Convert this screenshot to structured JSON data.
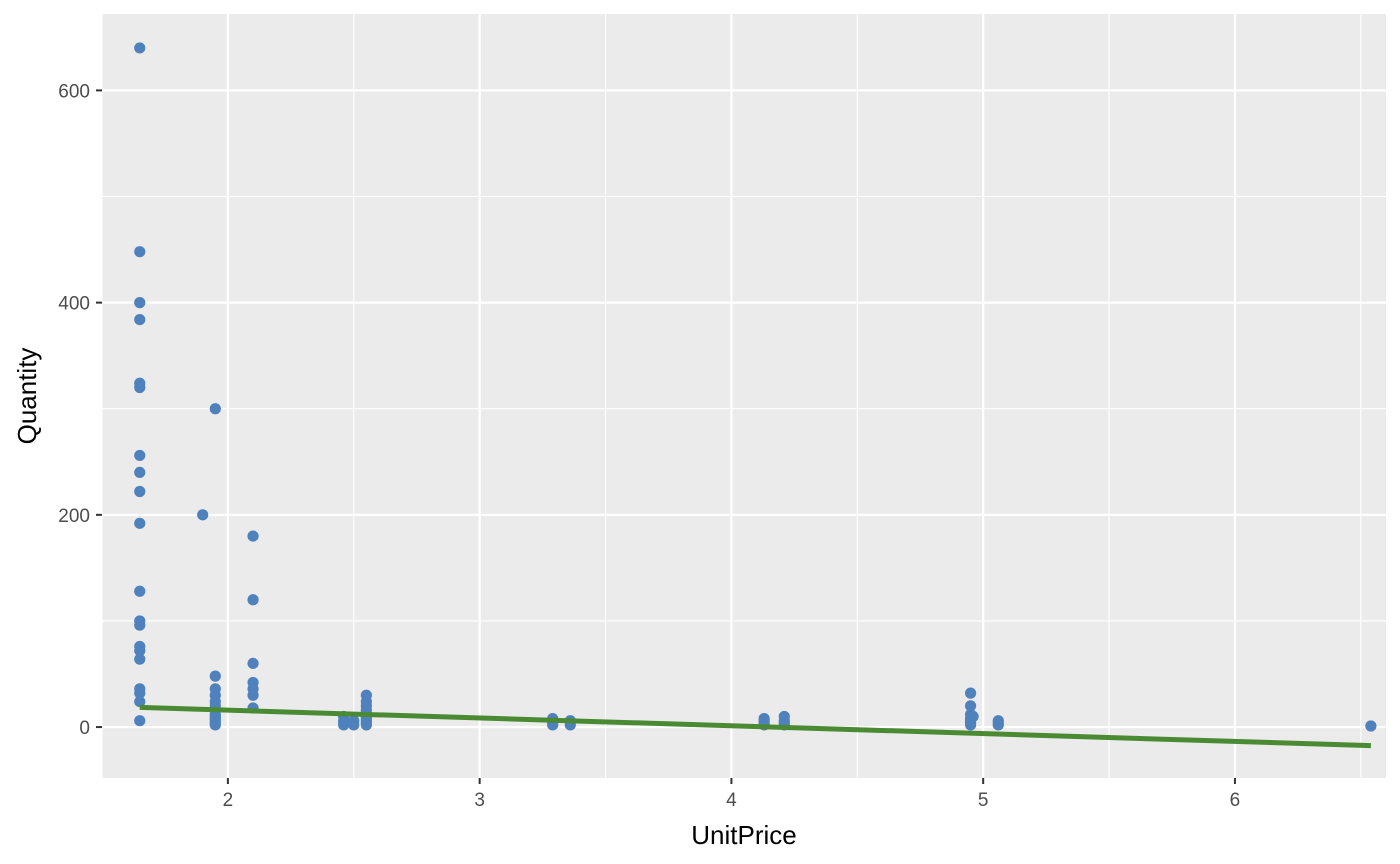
{
  "chart_data": {
    "type": "scatter",
    "title": "",
    "xlabel": "UnitPrice",
    "ylabel": "Quantity",
    "xlim": [
      1.5,
      6.6
    ],
    "ylim": [
      -48,
      672
    ],
    "x_ticks": [
      2,
      3,
      4,
      5,
      6
    ],
    "y_ticks": [
      0,
      200,
      400,
      600
    ],
    "grid": true,
    "legend": "none",
    "point_color": "#4f81bd",
    "line_color": "#4a8a33",
    "panel_color": "#ebebeb",
    "points": [
      {
        "x": 1.65,
        "y": 640
      },
      {
        "x": 1.65,
        "y": 448
      },
      {
        "x": 1.65,
        "y": 400
      },
      {
        "x": 1.65,
        "y": 384
      },
      {
        "x": 1.65,
        "y": 324
      },
      {
        "x": 1.65,
        "y": 320
      },
      {
        "x": 1.65,
        "y": 256
      },
      {
        "x": 1.65,
        "y": 240
      },
      {
        "x": 1.65,
        "y": 222
      },
      {
        "x": 1.65,
        "y": 192
      },
      {
        "x": 1.65,
        "y": 128
      },
      {
        "x": 1.65,
        "y": 100
      },
      {
        "x": 1.65,
        "y": 96
      },
      {
        "x": 1.65,
        "y": 76
      },
      {
        "x": 1.65,
        "y": 72
      },
      {
        "x": 1.65,
        "y": 64
      },
      {
        "x": 1.65,
        "y": 36
      },
      {
        "x": 1.65,
        "y": 32
      },
      {
        "x": 1.65,
        "y": 24
      },
      {
        "x": 1.65,
        "y": 6
      },
      {
        "x": 1.9,
        "y": 200
      },
      {
        "x": 1.95,
        "y": 300
      },
      {
        "x": 1.95,
        "y": 48
      },
      {
        "x": 1.95,
        "y": 36
      },
      {
        "x": 1.95,
        "y": 30
      },
      {
        "x": 1.95,
        "y": 24
      },
      {
        "x": 1.95,
        "y": 20
      },
      {
        "x": 1.95,
        "y": 16
      },
      {
        "x": 1.95,
        "y": 12
      },
      {
        "x": 1.95,
        "y": 10
      },
      {
        "x": 1.95,
        "y": 8
      },
      {
        "x": 1.95,
        "y": 6
      },
      {
        "x": 1.95,
        "y": 4
      },
      {
        "x": 1.95,
        "y": 2
      },
      {
        "x": 2.1,
        "y": 180
      },
      {
        "x": 2.1,
        "y": 120
      },
      {
        "x": 2.1,
        "y": 60
      },
      {
        "x": 2.1,
        "y": 42
      },
      {
        "x": 2.1,
        "y": 36
      },
      {
        "x": 2.1,
        "y": 30
      },
      {
        "x": 2.1,
        "y": 18
      },
      {
        "x": 2.46,
        "y": 10
      },
      {
        "x": 2.46,
        "y": 6
      },
      {
        "x": 2.46,
        "y": 4
      },
      {
        "x": 2.46,
        "y": 2
      },
      {
        "x": 2.5,
        "y": 6
      },
      {
        "x": 2.5,
        "y": 2
      },
      {
        "x": 2.55,
        "y": 30
      },
      {
        "x": 2.55,
        "y": 24
      },
      {
        "x": 2.55,
        "y": 20
      },
      {
        "x": 2.55,
        "y": 16
      },
      {
        "x": 2.55,
        "y": 12
      },
      {
        "x": 2.55,
        "y": 10
      },
      {
        "x": 2.55,
        "y": 8
      },
      {
        "x": 2.55,
        "y": 6
      },
      {
        "x": 2.55,
        "y": 4
      },
      {
        "x": 2.55,
        "y": 2
      },
      {
        "x": 3.29,
        "y": 8
      },
      {
        "x": 3.29,
        "y": 6
      },
      {
        "x": 3.29,
        "y": 4
      },
      {
        "x": 3.29,
        "y": 2
      },
      {
        "x": 3.36,
        "y": 6
      },
      {
        "x": 3.36,
        "y": 2
      },
      {
        "x": 4.13,
        "y": 8
      },
      {
        "x": 4.13,
        "y": 6
      },
      {
        "x": 4.13,
        "y": 4
      },
      {
        "x": 4.13,
        "y": 2
      },
      {
        "x": 4.21,
        "y": 10
      },
      {
        "x": 4.21,
        "y": 6
      },
      {
        "x": 4.21,
        "y": 4
      },
      {
        "x": 4.21,
        "y": 2
      },
      {
        "x": 4.95,
        "y": 32
      },
      {
        "x": 4.95,
        "y": 20
      },
      {
        "x": 4.95,
        "y": 12
      },
      {
        "x": 4.95,
        "y": 8
      },
      {
        "x": 4.95,
        "y": 6
      },
      {
        "x": 4.95,
        "y": 4
      },
      {
        "x": 4.95,
        "y": 2
      },
      {
        "x": 4.96,
        "y": 10
      },
      {
        "x": 5.06,
        "y": 6
      },
      {
        "x": 5.06,
        "y": 4
      },
      {
        "x": 5.06,
        "y": 2
      },
      {
        "x": 6.54,
        "y": 1
      }
    ],
    "trend_line": {
      "x": [
        1.65,
        6.54
      ],
      "y": [
        18.5,
        -17.5
      ]
    }
  }
}
